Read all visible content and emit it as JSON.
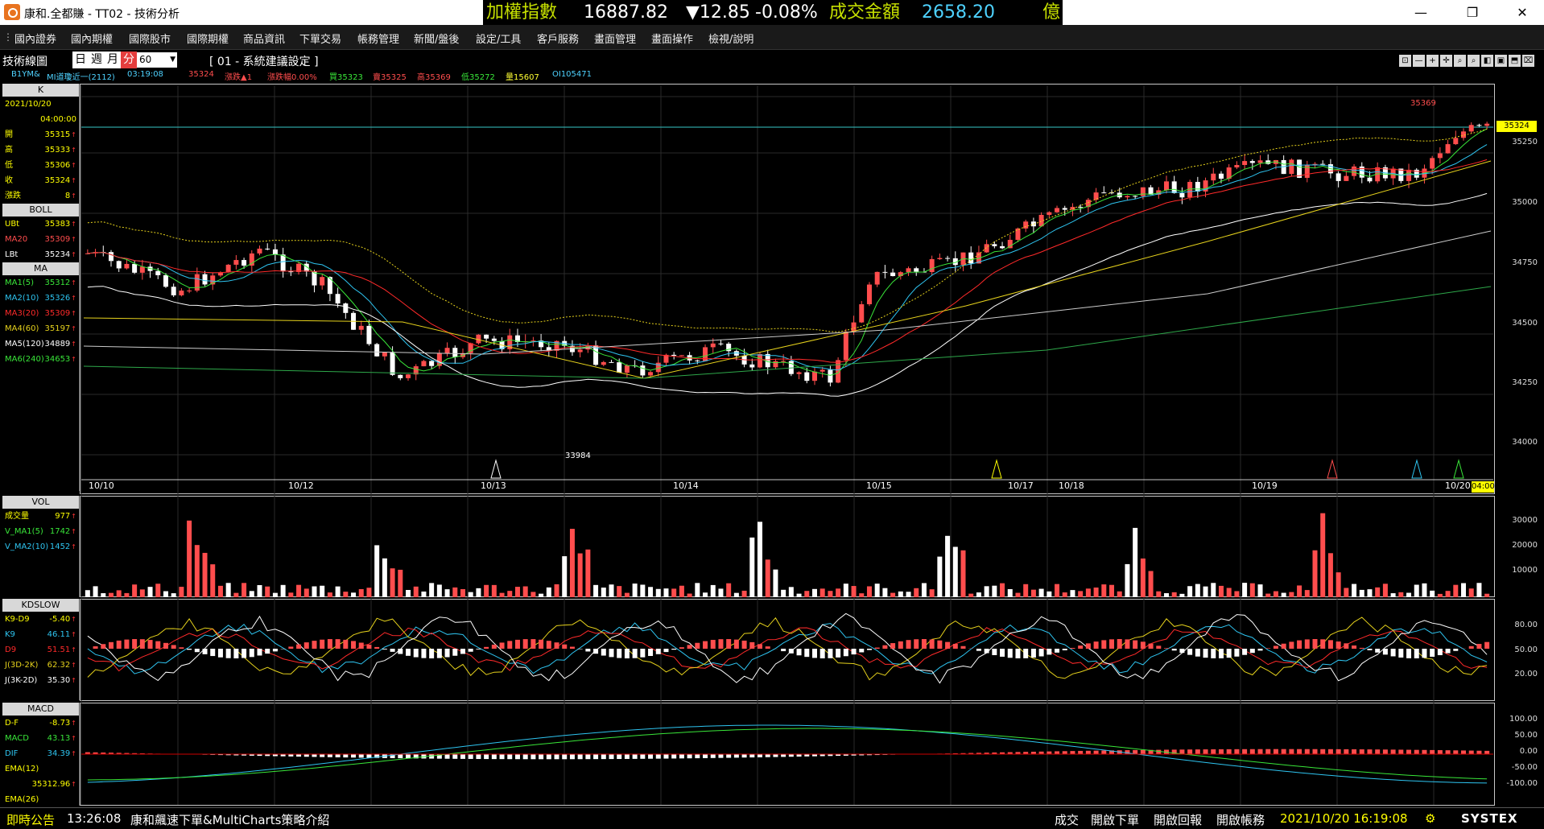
{
  "window": {
    "title": "康和.全都賺 - TT02 - 技術分析",
    "buttons": {
      "minimize": "—",
      "restore": "❐",
      "close": "✕"
    }
  },
  "ticker": {
    "index_label": "加權指數",
    "index_value": "16887.82",
    "change": "▼12.85",
    "change_pct": "-0.08%",
    "turnover_label": "成交金額",
    "turnover_value": "2658.20",
    "unit": "億"
  },
  "menu": [
    "國內證券",
    "國內期權",
    "國際股市",
    "國際期權",
    "商品資訊",
    "下單交易",
    "帳務管理",
    "新聞/盤後",
    "設定/工具",
    "客戶服務",
    "畫面管理",
    "畫面操作",
    "檢視/說明"
  ],
  "toolbar": {
    "label": "技術線圖",
    "periods": [
      "日",
      "週",
      "月",
      "分"
    ],
    "selected_period": "分",
    "interval": "60",
    "config": "[ 01 - 系統建議設定 ]",
    "icons": [
      "⊡",
      "—",
      "+",
      "✛",
      "⌕",
      "⌕",
      "◧",
      "▣",
      "⬒",
      "⌧"
    ]
  },
  "info": {
    "symbol": "B1YM&",
    "name": "MI道瓊近一(2112)",
    "time": "03:19:08",
    "price": "35324",
    "change": "漲跌▲1",
    "change_pct": "漲跌幅0.00%",
    "buy": "買35323",
    "sell": "賣35325",
    "high": "高35369",
    "low": "低35272",
    "volume": "量15607",
    "oi": "OI105471"
  },
  "sidebar_k": {
    "head": "K",
    "date": "2021/10/20",
    "time": "04:00:00",
    "rows": [
      {
        "k": "開",
        "v": "35315"
      },
      {
        "k": "高",
        "v": "35333"
      },
      {
        "k": "低",
        "v": "35306"
      },
      {
        "k": "收",
        "v": "35324"
      },
      {
        "k": "漲跌",
        "v": "8"
      }
    ]
  },
  "sidebar_boll": {
    "head": "BOLL",
    "rows": [
      {
        "k": "UBt",
        "v": "35383"
      },
      {
        "k": "MA20",
        "v": "35309"
      },
      {
        "k": "LBt",
        "v": "35234"
      }
    ]
  },
  "sidebar_ma": {
    "head": "MA",
    "rows": [
      {
        "k": "MA1(5)",
        "v": "35312"
      },
      {
        "k": "MA2(10)",
        "v": "35326"
      },
      {
        "k": "MA3(20)",
        "v": "35309"
      },
      {
        "k": "MA4(60)",
        "v": "35197"
      },
      {
        "k": "MA5(120)",
        "v": "34889"
      },
      {
        "k": "MA6(240)",
        "v": "34653"
      }
    ]
  },
  "sidebar_vol": {
    "head": "VOL",
    "rows": [
      {
        "k": "成交量",
        "v": "977"
      },
      {
        "k": "V_MA1(5)",
        "v": "1742"
      },
      {
        "k": "V_MA2(10)",
        "v": "1452"
      }
    ]
  },
  "sidebar_kd": {
    "head": "KDSLOW",
    "rows": [
      {
        "k": "K9-D9",
        "v": "-5.40"
      },
      {
        "k": "K9",
        "v": "46.11"
      },
      {
        "k": "D9",
        "v": "51.51"
      },
      {
        "k": "J(3D-2K)",
        "v": "62.32"
      },
      {
        "k": "J(3K-2D)",
        "v": "35.30"
      }
    ]
  },
  "sidebar_macd": {
    "head": "MACD",
    "rows": [
      {
        "k": "D-F",
        "v": "-8.73"
      },
      {
        "k": "MACD",
        "v": "43.13"
      },
      {
        "k": "DIF",
        "v": "34.39"
      },
      {
        "k": "EMA(12)",
        "v": ""
      },
      {
        "k": "",
        "v": "35312.96"
      },
      {
        "k": "EMA(26)",
        "v": ""
      }
    ]
  },
  "axes": {
    "price_ticks": [
      "35250",
      "35000",
      "34750",
      "34500",
      "34250",
      "34000"
    ],
    "current_price": "35324",
    "vol_ticks": [
      "30000",
      "20000",
      "10000"
    ],
    "kd_ticks": [
      "80.00",
      "50.00",
      "20.00"
    ],
    "macd_ticks": [
      "100.00",
      "50.00",
      "0.00",
      "-50.00",
      "-100.00"
    ],
    "dates": [
      "10/10",
      "10/12",
      "10/13",
      "10/14",
      "10/15",
      "10/17",
      "10/18",
      "10/19",
      "10/20"
    ],
    "last_time": "04:00",
    "low_label": "33984",
    "high_label": "35369"
  },
  "status": {
    "label": "即時公告",
    "time": "13:26:08",
    "message": "康和飆速下單&MultiCharts策略介紹",
    "buttons": [
      "成交",
      "開啟下單",
      "開啟回報",
      "開啟帳務"
    ],
    "datetime": "2021/10/20 16:19:08",
    "brand": "SYSTEX"
  },
  "colors": {
    "up": "#ff4d4d",
    "down": "#ffffff",
    "ma5": "#39e639",
    "ma10": "#2ec4f0",
    "ma20": "#ff2a2a",
    "ma60": "#e6d21c",
    "ma120": "#cccccc",
    "ma240": "#2ea84a",
    "boll": "#e6d21c"
  }
}
